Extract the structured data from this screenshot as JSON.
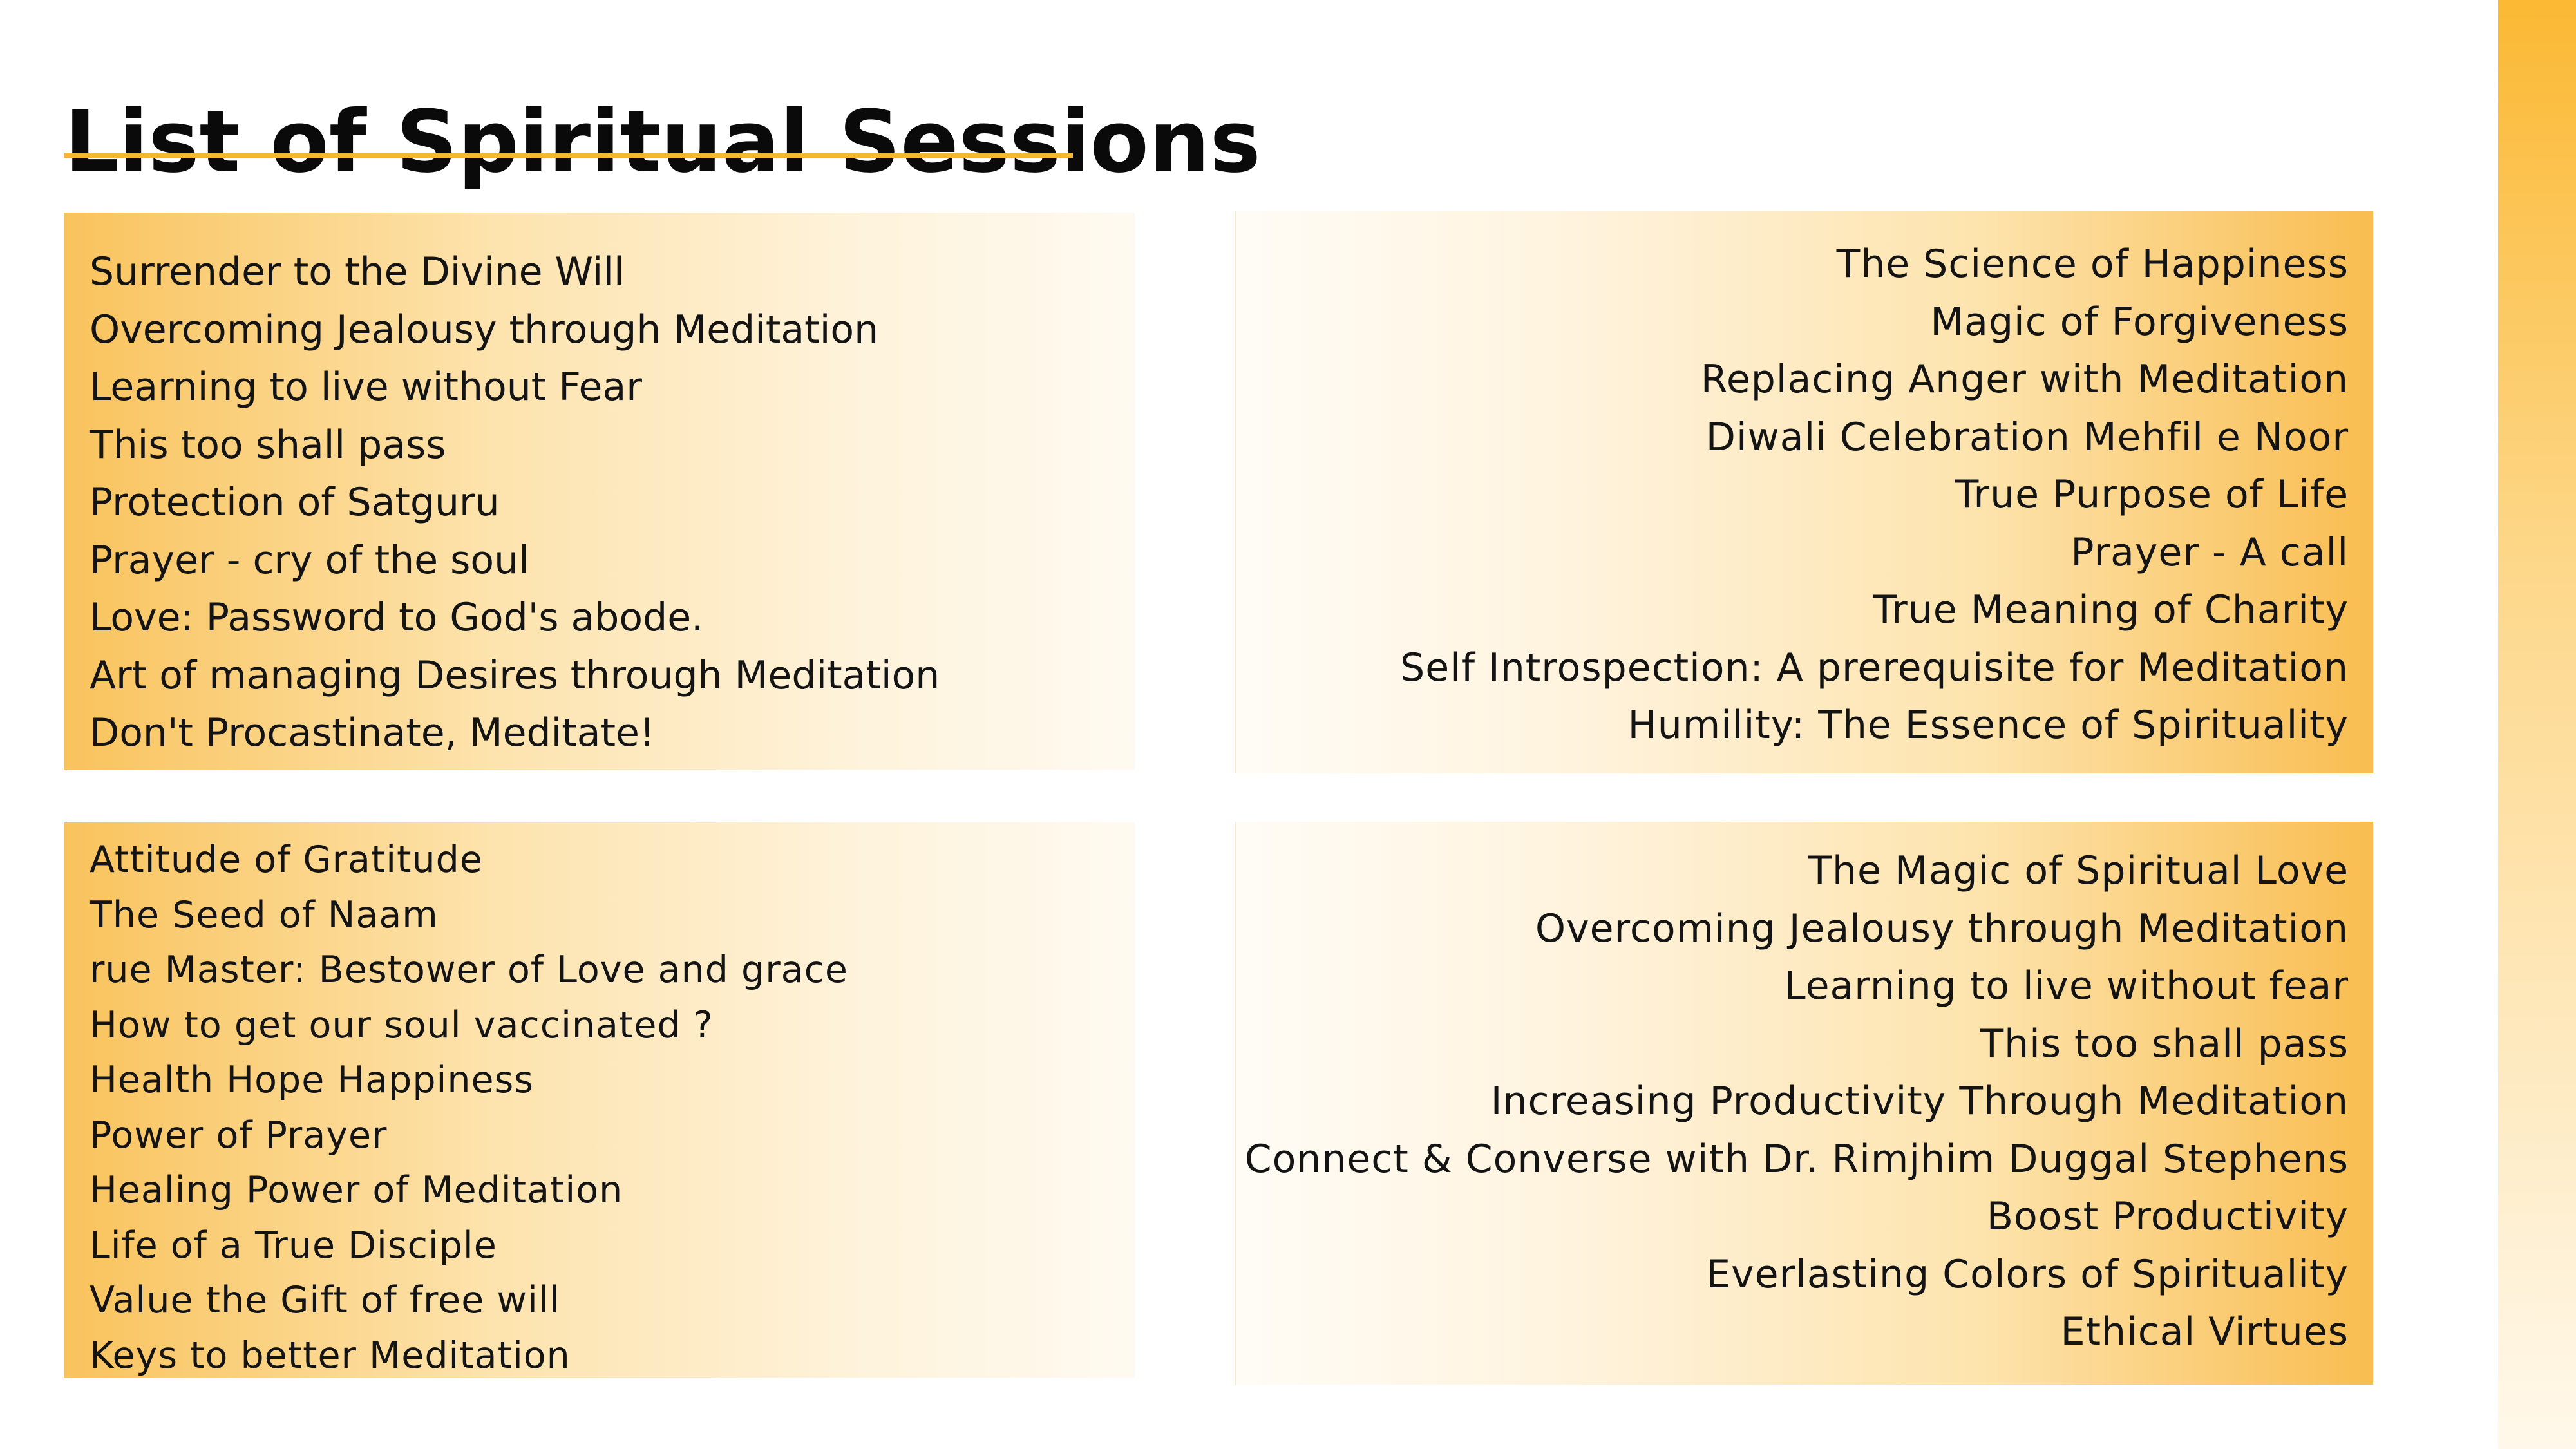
{
  "title": "List of Spiritual Sessions",
  "colors": {
    "accent": "#f5b731",
    "panel_dark": "#f9bd50",
    "panel_light": "#fffaf1"
  },
  "panels": [
    {
      "items": [
        "Surrender to the Divine Will",
        "Overcoming Jealousy through Meditation",
        "Learning to live without Fear",
        "This too shall pass",
        "Protection of Satguru",
        "Prayer - cry of the soul",
        "Love: Password to God's abode.",
        "Art of managing Desires through Meditation",
        "Don't Procastinate, Meditate!"
      ]
    },
    {
      "items": [
        "The Science of Happiness",
        "Magic of Forgiveness",
        "Replacing Anger with Meditation",
        "Diwali Celebration Mehfil e Noor",
        "True Purpose of Life",
        "Prayer - A call",
        "True Meaning of Charity",
        "Self Introspection: A prerequisite for Meditation",
        "Humility: The Essence of Spirituality"
      ]
    },
    {
      "items": [
        "Attitude of Gratitude",
        "The Seed of Naam",
        "rue Master: Bestower of Love and grace",
        "How to get our soul vaccinated ?",
        "Health Hope Happiness",
        "Power of Prayer",
        "Healing Power of Meditation",
        "Life of a True Disciple",
        "Value the Gift of free will",
        "Keys to better Meditation"
      ]
    },
    {
      "items": [
        "The Magic of Spiritual Love",
        "Overcoming Jealousy through Meditation",
        "Learning to live without fear",
        "This too shall pass",
        "Increasing Productivity Through Meditation",
        "Connect & Converse with Dr. Rimjhim Duggal Stephens",
        "Boost Productivity",
        "Everlasting Colors of Spirituality",
        "Ethical Virtues"
      ]
    }
  ]
}
